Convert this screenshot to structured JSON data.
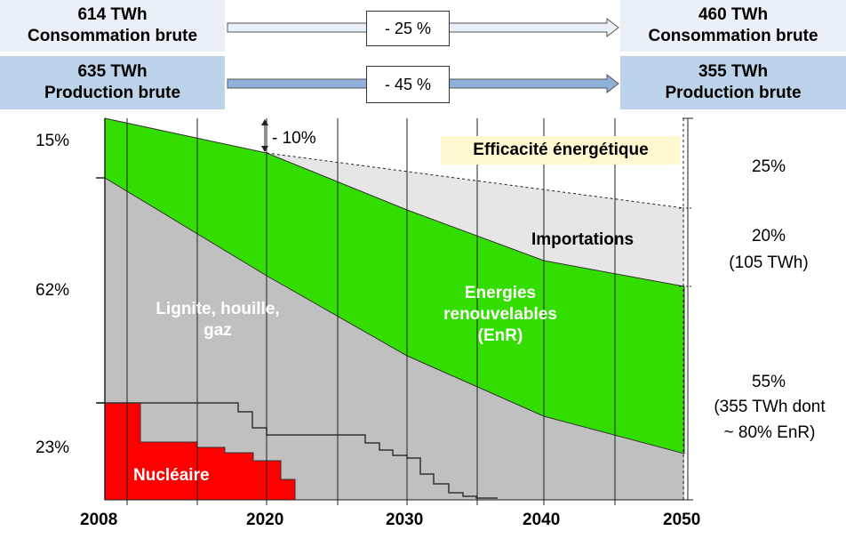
{
  "header": {
    "consumption": {
      "start_value": "614 TWh",
      "start_label": "Consommation brute",
      "change": "- 25 %",
      "end_value": "460 TWh",
      "end_label": "Consommation brute"
    },
    "production": {
      "start_value": "635 TWh",
      "start_label": "Production brute",
      "change": "- 45 %",
      "end_value": "355 TWh",
      "end_label": "Production brute"
    }
  },
  "chart_data": {
    "type": "area",
    "x_ticks": [
      "2008",
      "2020",
      "2030",
      "2040",
      "2050"
    ],
    "areas": {
      "nuclear": "Nucléaire",
      "fossil": "Lignite, houille, gaz",
      "renewables": "Energies renouvelables (EnR)",
      "imports": "Importations",
      "efficiency": "Efficacité énergétique"
    },
    "efficiency_2020_note": "- 10%",
    "left_shares_2008": [
      "15%",
      "62%",
      "23%"
    ],
    "right_shares_2050": [
      "25%",
      "20%",
      "(105 TWh)",
      "55%",
      "(355 TWh dont",
      "~ 80% EnR)"
    ],
    "colors": {
      "nuclear": "#ff0000",
      "fossil": "#c0c0c0",
      "renewables": "#33dd00",
      "imports": "#e6e6e6",
      "efficiency_label_bg": "#fff8d0",
      "header_light": "#e9f0f8",
      "header_dark": "#bdd3e9"
    }
  }
}
